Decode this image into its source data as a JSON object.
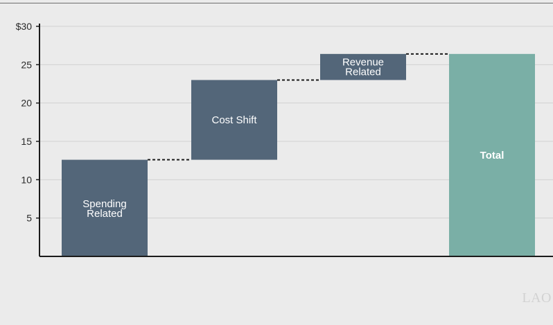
{
  "chart_data": {
    "type": "waterfall",
    "title": "",
    "xlabel": "",
    "ylabel": "",
    "ylim": [
      0,
      30
    ],
    "y_ticks": [
      {
        "value": 30,
        "label": "$30"
      },
      {
        "value": 25,
        "label": "25"
      },
      {
        "value": 20,
        "label": "20"
      },
      {
        "value": 15,
        "label": "15"
      },
      {
        "value": 10,
        "label": "10"
      },
      {
        "value": 5,
        "label": "5"
      }
    ],
    "grid": true,
    "bars": [
      {
        "label_lines": [
          "Spending",
          "Related"
        ],
        "start": 0,
        "end": 12.6,
        "kind": "step",
        "bold": false
      },
      {
        "label_lines": [
          "Cost Shift"
        ],
        "start": 12.6,
        "end": 23.0,
        "kind": "step",
        "bold": false
      },
      {
        "label_lines": [
          "Revenue",
          "Related"
        ],
        "start": 23.0,
        "end": 26.4,
        "kind": "step",
        "bold": false
      },
      {
        "label_lines": [
          "Total"
        ],
        "start": 0,
        "end": 26.4,
        "kind": "total",
        "bold": true
      }
    ],
    "colors": {
      "step": "#536679",
      "total": "#7aafa6",
      "background": "#ebebeb",
      "grid": "#d0d0d0",
      "axis": "#1a1a1a",
      "connector": "#1a1a1a"
    }
  },
  "watermark": "LAO"
}
